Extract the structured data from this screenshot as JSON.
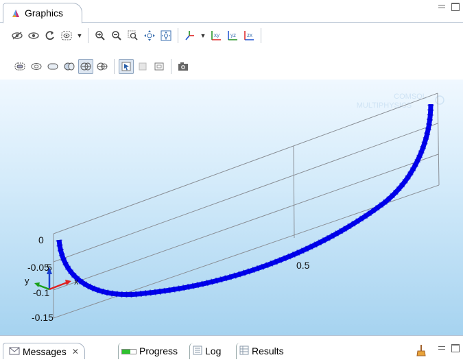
{
  "window": {
    "tab_title": "Graphics"
  },
  "toolbar_row1": {
    "buttons": [
      "hide-icon",
      "show-icon",
      "reset-icon",
      "view-icon",
      "zoom-in-icon",
      "zoom-out-icon",
      "zoom-box-icon",
      "zoom-extents-icon",
      "zoom-selected-icon",
      "axes-icon",
      "xy-plane-icon",
      "yz-plane-icon",
      "zx-plane-icon"
    ],
    "xy_label": "xy",
    "yz_label": "yz",
    "zx_label": "zx"
  },
  "plot": {
    "watermark_line1": "COMSOL",
    "watermark_line2": "MULTIPHYSICS",
    "z_ticks": [
      "0",
      "-0.05",
      "-0.1",
      "-0.15"
    ],
    "x_tick": "0.5",
    "y_tick_partial": "5",
    "triad_y": "y",
    "triad_x": "x",
    "curve_color": "#0000ee"
  },
  "bottom_tabs": {
    "messages": "Messages",
    "progress": "Progress",
    "log": "Log",
    "results": "Results"
  },
  "colors": {
    "canvas_top": "#f0f8ff",
    "canvas_bottom": "#a6d3f0",
    "accent": "#1a4fa0"
  }
}
